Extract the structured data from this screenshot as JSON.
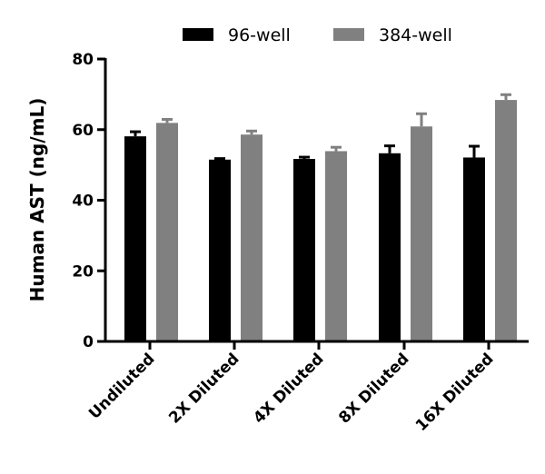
{
  "chart_data": {
    "type": "bar",
    "title": "",
    "xlabel": "",
    "ylabel": "Human AST (ng/mL)",
    "ylim": [
      0,
      80
    ],
    "yticks": [
      0,
      20,
      40,
      60,
      80
    ],
    "categories": [
      "Undiluted",
      "2X Diluted",
      "4X Diluted",
      "8X Diluted",
      "16X Diluted"
    ],
    "series": [
      {
        "name": "96-well",
        "color": "#000000",
        "values": [
          58.1,
          51.5,
          51.7,
          53.3,
          52.1
        ],
        "errors": [
          1.3,
          0.3,
          0.5,
          2.1,
          3.2
        ]
      },
      {
        "name": "384-well",
        "color": "#808080",
        "values": [
          61.9,
          58.6,
          53.9,
          60.9,
          68.4
        ],
        "errors": [
          1.0,
          1.0,
          1.1,
          3.6,
          1.5
        ]
      }
    ],
    "legend_position": "top-center",
    "grid": false,
    "error_bars": "upper"
  }
}
